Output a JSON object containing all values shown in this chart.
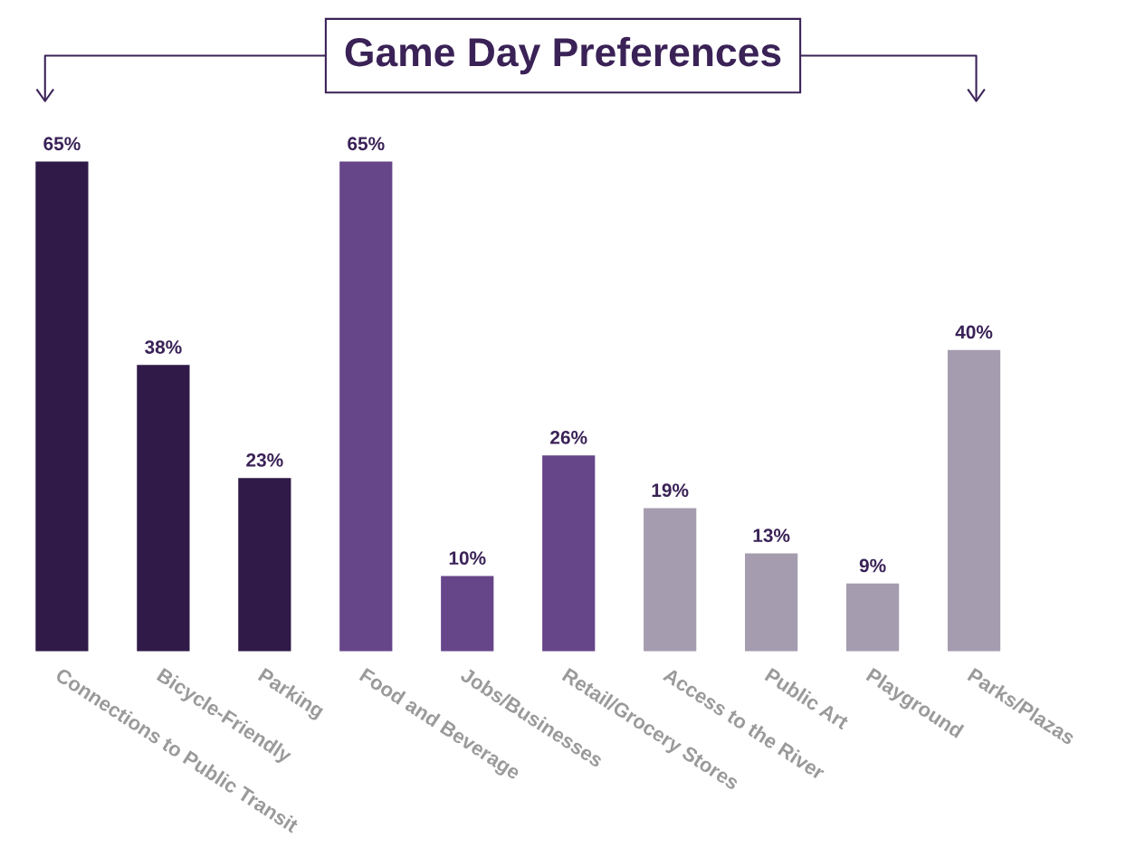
{
  "chart_data": {
    "type": "bar",
    "title": "Game Day Preferences",
    "categories": [
      "Connections to Public Transit",
      "Bicycle-Friendly",
      "Parking",
      "Food and Beverage",
      "Jobs/Businesses",
      "Retail/Grocery Stores",
      "Access to the River",
      "Public Art",
      "Playground",
      "Parks/Plazas"
    ],
    "values": [
      65,
      38,
      23,
      65,
      10,
      26,
      19,
      13,
      9,
      40
    ],
    "value_labels": [
      "65%",
      "38%",
      "23%",
      "65%",
      "10%",
      "26%",
      "19%",
      "13%",
      "9%",
      "40%"
    ],
    "colors": [
      "#2f1a48",
      "#2f1a48",
      "#2f1a48",
      "#664589",
      "#664589",
      "#664589",
      "#a59cb0",
      "#a59cb0",
      "#a59cb0",
      "#a59cb0"
    ],
    "grid": false,
    "legend": false,
    "tick_labels": "x"
  }
}
